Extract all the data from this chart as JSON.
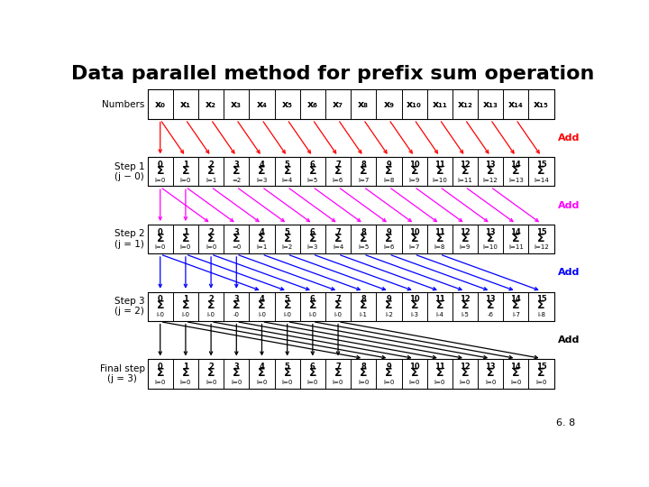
{
  "title": "Data parallel method for prefix sum operation",
  "title_fontsize": 16,
  "n": 16,
  "slide_label": "6. 8",
  "x_numbers": [
    "x₀",
    "x₁",
    "x₂",
    "x₃",
    "x₄",
    "x₅",
    "x₆",
    "x₇",
    "x₈",
    "x₉",
    "x₁₀",
    "x₁₁",
    "x₁₂",
    "x₁₃",
    "x₁₄",
    "x₁₅"
  ],
  "step1_upper": [
    "0",
    "1",
    "2",
    "3",
    "4",
    "5",
    "6",
    "7",
    "8",
    "9",
    "10",
    "11",
    "12",
    "13",
    "14",
    "15"
  ],
  "step1_lower": [
    "i=0",
    "i=0",
    "i=1",
    "=2",
    "i=3",
    "i=4",
    "i=5",
    "i=6",
    "i=7",
    "i=8",
    "i=9",
    "i=10",
    "i=11",
    "i=12",
    "i=13",
    "i=14"
  ],
  "step2_upper": [
    "0",
    "1",
    "2",
    "3",
    "4",
    "5",
    "6",
    "7",
    "8",
    "9",
    "10",
    "11",
    "12",
    "13",
    "14",
    "15"
  ],
  "step2_lower": [
    "i=0",
    "i=0",
    "i=0",
    "=0",
    "i=1",
    "i=2",
    "i=3",
    "i=4",
    "i=5",
    "i=6",
    "i=7",
    "i=8",
    "i=9",
    "i=10",
    "i=11",
    "i=12"
  ],
  "step3_upper": [
    "0",
    "1",
    "2",
    "3",
    "4",
    "5",
    "6",
    "7",
    "8",
    "9",
    "10",
    "11",
    "12",
    "13",
    "14",
    "15"
  ],
  "step3_lower": [
    "i-0",
    "i-0",
    "i-0",
    "-0",
    "i-0",
    "i-0",
    "i-0",
    "i-0",
    "i-1",
    "i-2",
    "i-3",
    "i-4",
    "i-5",
    "-6",
    "i-7",
    "i-8"
  ],
  "final_upper": [
    "0",
    "1",
    "2",
    "3",
    "4",
    "5",
    "6",
    "7",
    "8",
    "9",
    "10",
    "11",
    "12",
    "13",
    "14",
    "15"
  ],
  "final_lower": [
    "i=0",
    "i=0",
    "i=0",
    "i=0",
    "i=0",
    "i=0",
    "i=0",
    "i=0",
    "i=0",
    "i=0",
    "i=0",
    "i=0",
    "i=0",
    "i=0",
    "i=0",
    "i=0"
  ],
  "arrow_colors": [
    "red",
    "magenta",
    "blue",
    "black"
  ],
  "bg_color": "white"
}
